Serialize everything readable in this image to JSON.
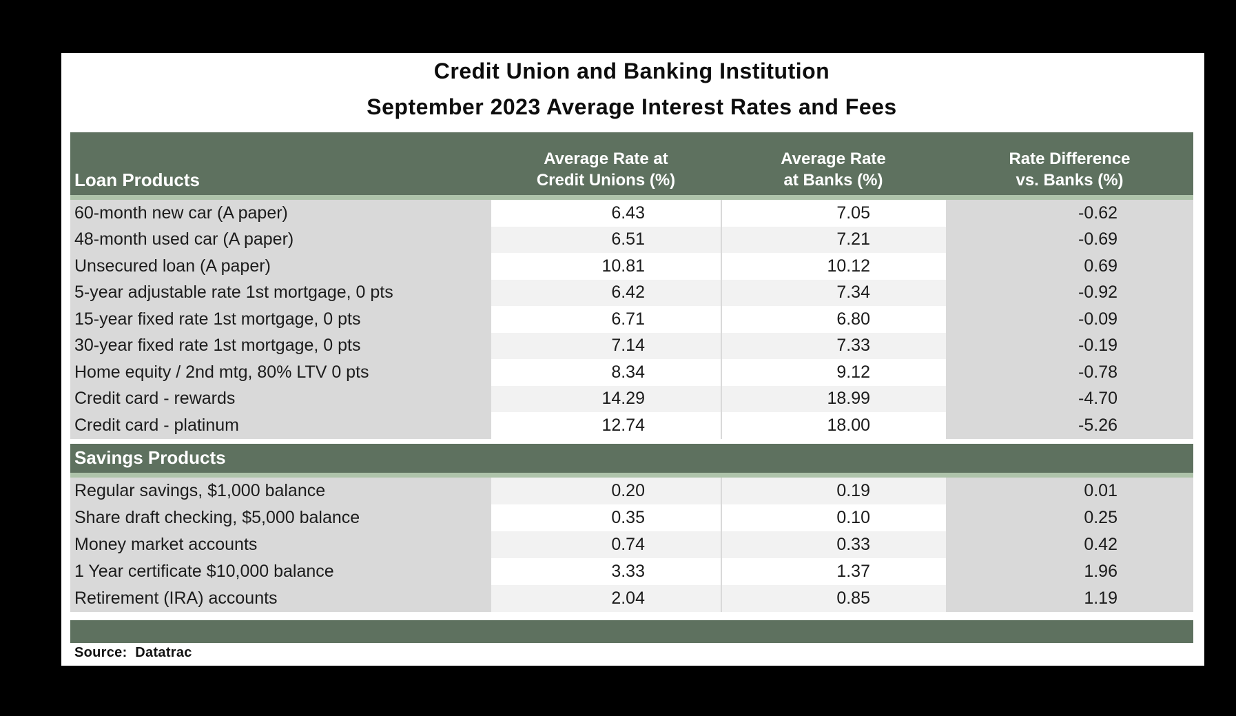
{
  "colors": {
    "band_green": "#5E715F",
    "band_light_green": "#AEC3AA",
    "label_column_gray": "#D9D9D9",
    "stripe_gray": "#F2F2F2",
    "background_frame": "#000000",
    "page_white": "#FFFFFF"
  },
  "table_header": {
    "loan_products": "Loan Products",
    "credit_union_col": [
      "Average Rate at",
      "Credit Unions (%)"
    ],
    "bank_col": [
      "Average Rate",
      "at Banks (%)"
    ],
    "diff_col": [
      "Rate Difference",
      "vs. Banks (%)"
    ]
  },
  "chart_data": {
    "type": "table",
    "title": "Credit Union and Banking Institution",
    "subtitle": "September 2023 Average Interest Rates and Fees",
    "columns": [
      "Loan Products",
      "Average Rate at Credit Unions (%)",
      "Average Rate at Banks (%)",
      "Rate Difference vs. Banks (%)"
    ],
    "sections": [
      {
        "section": "Loan Products",
        "rows": [
          {
            "label": "60-month new car (A paper)",
            "credit_union": "6.43",
            "bank": "7.05",
            "difference": "-0.62"
          },
          {
            "label": "48-month used car (A paper)",
            "credit_union": "6.51",
            "bank": "7.21",
            "difference": "-0.69"
          },
          {
            "label": "Unsecured loan (A paper)",
            "credit_union": "10.81",
            "bank": "10.12",
            "difference": "0.69"
          },
          {
            "label": "5-year adjustable rate 1st mortgage, 0 pts",
            "credit_union": "6.42",
            "bank": "7.34",
            "difference": "-0.92"
          },
          {
            "label": "15-year fixed rate 1st mortgage, 0 pts",
            "credit_union": "6.71",
            "bank": "6.80",
            "difference": "-0.09"
          },
          {
            "label": "30-year fixed rate 1st mortgage, 0 pts",
            "credit_union": "7.14",
            "bank": "7.33",
            "difference": "-0.19"
          },
          {
            "label": "Home equity / 2nd mtg, 80% LTV 0 pts",
            "credit_union": "8.34",
            "bank": "9.12",
            "difference": "-0.78"
          },
          {
            "label": "Credit card - rewards",
            "credit_union": "14.29",
            "bank": "18.99",
            "difference": "-4.70"
          },
          {
            "label": "Credit card - platinum",
            "credit_union": "12.74",
            "bank": "18.00",
            "difference": "-5.26"
          }
        ]
      },
      {
        "section": "Savings Products",
        "rows": [
          {
            "label": "Regular savings, $1,000 balance",
            "credit_union": "0.20",
            "bank": "0.19",
            "difference": "0.01"
          },
          {
            "label": "Share draft checking, $5,000 balance",
            "credit_union": "0.35",
            "bank": "0.10",
            "difference": "0.25"
          },
          {
            "label": "Money market accounts",
            "credit_union": "0.74",
            "bank": "0.33",
            "difference": "0.42"
          },
          {
            "label": "1 Year certificate $10,000 balance",
            "credit_union": "3.33",
            "bank": "1.37",
            "difference": "1.96"
          },
          {
            "label": "Retirement (IRA) accounts",
            "credit_union": "2.04",
            "bank": "0.85",
            "difference": "1.19"
          }
        ]
      }
    ],
    "source": "Source:  Datatrac"
  }
}
